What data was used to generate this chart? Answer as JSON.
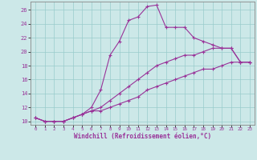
{
  "title": "",
  "xlabel": "Windchill (Refroidissement éolien,°C)",
  "bg_color": "#cce8e8",
  "line_color": "#993399",
  "grid_color": "#99cccc",
  "xlim": [
    -0.5,
    23.5
  ],
  "ylim": [
    9.5,
    27.2
  ],
  "xticks": [
    0,
    1,
    2,
    3,
    4,
    5,
    6,
    7,
    8,
    9,
    10,
    11,
    12,
    13,
    14,
    15,
    16,
    17,
    18,
    19,
    20,
    21,
    22,
    23
  ],
  "yticks": [
    10,
    12,
    14,
    16,
    18,
    20,
    22,
    24,
    26
  ],
  "line1_x": [
    0,
    1,
    2,
    3,
    4,
    5,
    6,
    7,
    8,
    9,
    10,
    11,
    12,
    13,
    14,
    15,
    16,
    17,
    18,
    19,
    20,
    21,
    22,
    23
  ],
  "line1_y": [
    10.5,
    10.0,
    10.0,
    10.0,
    10.5,
    11.0,
    12.0,
    14.5,
    19.5,
    21.5,
    24.5,
    25.0,
    26.5,
    26.7,
    23.5,
    23.5,
    23.5,
    22.0,
    21.5,
    21.0,
    20.5,
    20.5,
    18.5,
    18.5
  ],
  "line2_x": [
    0,
    1,
    2,
    3,
    4,
    5,
    6,
    7,
    8,
    9,
    10,
    11,
    12,
    13,
    14,
    15,
    16,
    17,
    18,
    19,
    20,
    21,
    22,
    23
  ],
  "line2_y": [
    10.5,
    10.0,
    10.0,
    10.0,
    10.5,
    11.0,
    11.5,
    12.0,
    13.0,
    14.0,
    15.0,
    16.0,
    17.0,
    18.0,
    18.5,
    19.0,
    19.5,
    19.5,
    20.0,
    20.5,
    20.5,
    20.5,
    18.5,
    18.5
  ],
  "line3_x": [
    0,
    1,
    2,
    3,
    4,
    5,
    6,
    7,
    8,
    9,
    10,
    11,
    12,
    13,
    14,
    15,
    16,
    17,
    18,
    19,
    20,
    21,
    22,
    23
  ],
  "line3_y": [
    10.5,
    10.0,
    10.0,
    10.0,
    10.5,
    11.0,
    11.5,
    11.5,
    12.0,
    12.5,
    13.0,
    13.5,
    14.5,
    15.0,
    15.5,
    16.0,
    16.5,
    17.0,
    17.5,
    17.5,
    18.0,
    18.5,
    18.5,
    18.5
  ]
}
